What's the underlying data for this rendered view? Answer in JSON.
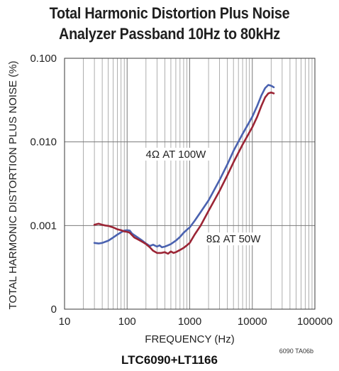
{
  "title_lines": [
    "Total Harmonic Distortion Plus Noise",
    "Analyzer Passband 10Hz to 80kHz"
  ],
  "caption": "LTC6090+LT1166",
  "figure_id": "6090 TA06b",
  "chart_data": {
    "type": "line",
    "title": "Total Harmonic Distortion Plus Noise Analyzer Passband 10Hz to 80kHz",
    "xlabel": "FREQUENCY (Hz)",
    "ylabel": "TOTAL HARMONIC DISTORTION PLUS NOISE (%)",
    "x_scale": "log",
    "xlim": [
      10,
      100000
    ],
    "x_ticks": [
      10,
      100,
      1000,
      10000,
      100000
    ],
    "x_tick_labels": [
      "10",
      "100",
      "1000",
      "10000",
      "100000"
    ],
    "y_scale": "log (three decades, bottom label shown as 0)",
    "ylim": [
      0.0001,
      0.1
    ],
    "y_ticks": [
      0.0001,
      0.001,
      0.01,
      0.1
    ],
    "y_tick_labels": [
      "0",
      "0.001",
      "0.010",
      "0.100"
    ],
    "grid": true,
    "series": [
      {
        "name": "4Ω AT 100W",
        "color": "#4a62b0",
        "points": [
          [
            30,
            0.00062
          ],
          [
            35,
            0.00061
          ],
          [
            40,
            0.00062
          ],
          [
            50,
            0.00066
          ],
          [
            60,
            0.00072
          ],
          [
            70,
            0.00078
          ],
          [
            80,
            0.00083
          ],
          [
            90,
            0.00087
          ],
          [
            100,
            0.00088
          ],
          [
            110,
            0.00087
          ],
          [
            120,
            0.0008
          ],
          [
            140,
            0.00074
          ],
          [
            170,
            0.00067
          ],
          [
            200,
            0.00061
          ],
          [
            230,
            0.00057
          ],
          [
            260,
            0.00059
          ],
          [
            300,
            0.00056
          ],
          [
            330,
            0.00058
          ],
          [
            360,
            0.00055
          ],
          [
            400,
            0.00056
          ],
          [
            450,
            0.00058
          ],
          [
            500,
            0.0006
          ],
          [
            600,
            0.00066
          ],
          [
            700,
            0.00073
          ],
          [
            800,
            0.00082
          ],
          [
            900,
            0.00089
          ],
          [
            1000,
            0.00095
          ],
          [
            1200,
            0.00114
          ],
          [
            1500,
            0.00145
          ],
          [
            2000,
            0.002
          ],
          [
            3000,
            0.0035
          ],
          [
            4000,
            0.0054
          ],
          [
            5000,
            0.0078
          ],
          [
            7000,
            0.0125
          ],
          [
            10000,
            0.02
          ],
          [
            12000,
            0.027
          ],
          [
            14000,
            0.036
          ],
          [
            16000,
            0.044
          ],
          [
            18000,
            0.048
          ],
          [
            20000,
            0.047
          ],
          [
            22000,
            0.045
          ]
        ]
      },
      {
        "name": "8Ω AT 50W",
        "color": "#9b2535",
        "points": [
          [
            30,
            0.00102
          ],
          [
            35,
            0.00105
          ],
          [
            40,
            0.00102
          ],
          [
            45,
            0.001
          ],
          [
            50,
            0.00099
          ],
          [
            60,
            0.00095
          ],
          [
            70,
            0.0009
          ],
          [
            80,
            0.00088
          ],
          [
            90,
            0.00085
          ],
          [
            100,
            0.00084
          ],
          [
            110,
            0.00082
          ],
          [
            130,
            0.00072
          ],
          [
            150,
            0.00068
          ],
          [
            180,
            0.00063
          ],
          [
            200,
            0.0006
          ],
          [
            230,
            0.00055
          ],
          [
            260,
            0.0005
          ],
          [
            300,
            0.00047
          ],
          [
            350,
            0.00047
          ],
          [
            400,
            0.00048
          ],
          [
            450,
            0.00046
          ],
          [
            500,
            0.00049
          ],
          [
            550,
            0.00047
          ],
          [
            600,
            0.00048
          ],
          [
            700,
            0.00051
          ],
          [
            800,
            0.00054
          ],
          [
            900,
            0.00058
          ],
          [
            1000,
            0.00062
          ],
          [
            1200,
            0.00078
          ],
          [
            1500,
            0.001
          ],
          [
            2000,
            0.0015
          ],
          [
            3000,
            0.0026
          ],
          [
            4000,
            0.004
          ],
          [
            5000,
            0.0057
          ],
          [
            7000,
            0.0093
          ],
          [
            10000,
            0.015
          ],
          [
            12000,
            0.02
          ],
          [
            14000,
            0.027
          ],
          [
            16000,
            0.034
          ],
          [
            18000,
            0.038
          ],
          [
            20000,
            0.039
          ],
          [
            22000,
            0.038
          ]
        ]
      }
    ],
    "annotations": [
      {
        "text": "4Ω AT 100W",
        "x": 600,
        "y": 0.0066
      },
      {
        "text": "8Ω AT 50W",
        "x": 5000,
        "y": 0.00064
      }
    ]
  }
}
